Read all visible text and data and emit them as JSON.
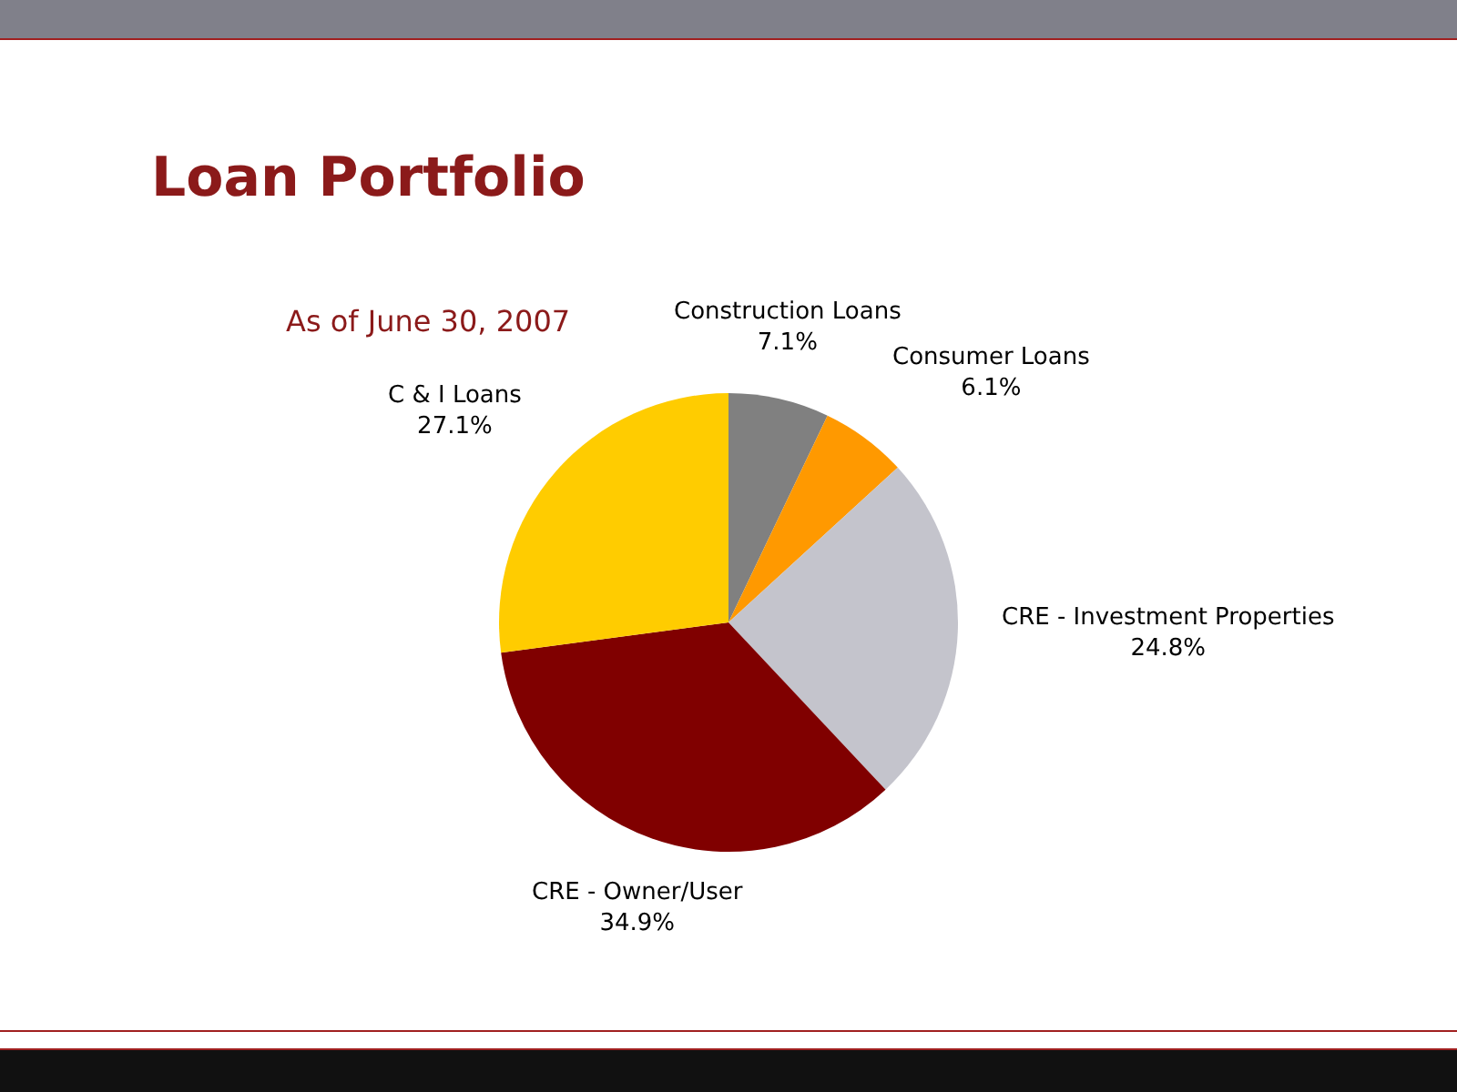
{
  "chart_data": {
    "type": "pie",
    "title": "Loan Portfolio",
    "subtitle": "As of June 30, 2007",
    "categories": [
      "Construction Loans",
      "Consumer Loans",
      "CRE - Investment Properties",
      "CRE - Owner/User",
      "C & I Loans"
    ],
    "values": [
      7.1,
      6.1,
      24.8,
      34.9,
      27.1
    ],
    "value_labels": [
      "7.1%",
      "6.1%",
      "24.8%",
      "34.9%",
      "27.1%"
    ],
    "colors": [
      "#808080",
      "#ff9900",
      "#c4c4cc",
      "#800000",
      "#ffcc00"
    ],
    "legend": false
  }
}
